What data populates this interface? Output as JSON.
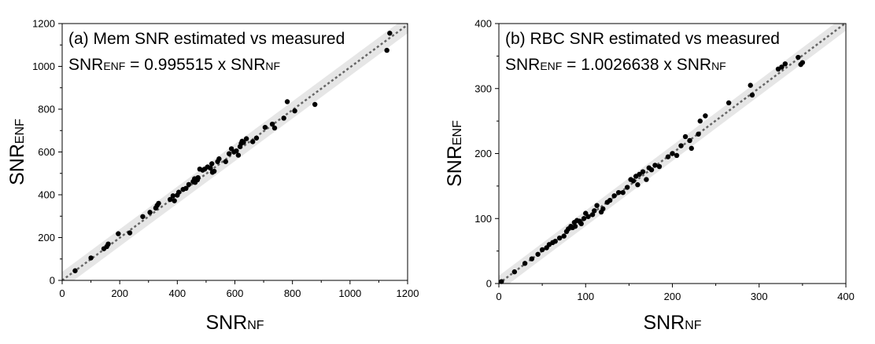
{
  "chart_data": [
    {
      "type": "scatter",
      "title": "(a)  Mem SNR estimated vs measured",
      "equation": {
        "lhs_main": "SNR",
        "lhs_sub": "ENF",
        "middle": " = 0.995515 x ",
        "rhs_main": "SNR",
        "rhs_sub": "NF"
      },
      "xlabel": {
        "main": "SNR",
        "sub": "NF"
      },
      "ylabel": {
        "main": "SNR",
        "sub": "ENF"
      },
      "xlim": [
        0,
        1200
      ],
      "ylim": [
        0,
        1200
      ],
      "xticks": [
        0,
        200,
        400,
        600,
        800,
        1000,
        1200
      ],
      "yticks": [
        0,
        200,
        400,
        600,
        800,
        1000,
        1200
      ],
      "fit_slope": 0.995515,
      "band_halfwidth": 40,
      "grid": false,
      "points": [
        [
          45,
          45
        ],
        [
          100,
          105
        ],
        [
          145,
          148
        ],
        [
          155,
          158
        ],
        [
          160,
          170
        ],
        [
          195,
          218
        ],
        [
          235,
          222
        ],
        [
          280,
          298
        ],
        [
          305,
          318
        ],
        [
          325,
          338
        ],
        [
          330,
          350
        ],
        [
          335,
          360
        ],
        [
          375,
          378
        ],
        [
          385,
          395
        ],
        [
          390,
          372
        ],
        [
          400,
          398
        ],
        [
          405,
          412
        ],
        [
          420,
          425
        ],
        [
          430,
          430
        ],
        [
          440,
          448
        ],
        [
          455,
          462
        ],
        [
          460,
          475
        ],
        [
          462,
          458
        ],
        [
          470,
          470
        ],
        [
          472,
          480
        ],
        [
          478,
          520
        ],
        [
          488,
          515
        ],
        [
          495,
          520
        ],
        [
          505,
          530
        ],
        [
          515,
          525
        ],
        [
          520,
          545
        ],
        [
          522,
          505
        ],
        [
          528,
          510
        ],
        [
          540,
          555
        ],
        [
          545,
          568
        ],
        [
          568,
          555
        ],
        [
          580,
          592
        ],
        [
          588,
          615
        ],
        [
          597,
          600
        ],
        [
          605,
          605
        ],
        [
          612,
          585
        ],
        [
          618,
          625
        ],
        [
          622,
          640
        ],
        [
          625,
          650
        ],
        [
          630,
          645
        ],
        [
          640,
          662
        ],
        [
          662,
          648
        ],
        [
          675,
          665
        ],
        [
          705,
          715
        ],
        [
          730,
          730
        ],
        [
          738,
          712
        ],
        [
          770,
          758
        ],
        [
          782,
          835
        ],
        [
          808,
          792
        ],
        [
          878,
          822
        ],
        [
          1128,
          1075
        ],
        [
          1138,
          1155
        ]
      ]
    },
    {
      "type": "scatter",
      "title": "(b)  RBC SNR estimated vs measured",
      "equation": {
        "lhs_main": "SNR",
        "lhs_sub": "ENF",
        "middle": " = 1.0026638 x ",
        "rhs_main": "SNR",
        "rhs_sub": "NF"
      },
      "xlabel": {
        "main": "SNR",
        "sub": "NF"
      },
      "ylabel": {
        "main": "SNR",
        "sub": "ENF"
      },
      "xlim": [
        0,
        400
      ],
      "ylim": [
        0,
        400
      ],
      "xticks": [
        0,
        100,
        200,
        300,
        400
      ],
      "yticks": [
        0,
        100,
        200,
        300,
        400
      ],
      "fit_slope": 1.0026638,
      "band_halfwidth": 12,
      "grid": false,
      "points": [
        [
          3,
          3
        ],
        [
          18,
          18
        ],
        [
          30,
          31
        ],
        [
          38,
          38
        ],
        [
          45,
          45
        ],
        [
          50,
          52
        ],
        [
          55,
          55
        ],
        [
          58,
          60
        ],
        [
          62,
          63
        ],
        [
          65,
          65
        ],
        [
          70,
          70
        ],
        [
          75,
          73
        ],
        [
          78,
          80
        ],
        [
          80,
          84
        ],
        [
          83,
          88
        ],
        [
          85,
          86
        ],
        [
          87,
          94
        ],
        [
          88,
          88
        ],
        [
          90,
          97
        ],
        [
          93,
          96
        ],
        [
          95,
          92
        ],
        [
          98,
          100
        ],
        [
          100,
          108
        ],
        [
          103,
          103
        ],
        [
          108,
          106
        ],
        [
          110,
          112
        ],
        [
          113,
          120
        ],
        [
          118,
          110
        ],
        [
          120,
          115
        ],
        [
          125,
          125
        ],
        [
          128,
          128
        ],
        [
          133,
          135
        ],
        [
          138,
          140
        ],
        [
          143,
          140
        ],
        [
          148,
          148
        ],
        [
          152,
          160
        ],
        [
          155,
          158
        ],
        [
          158,
          165
        ],
        [
          160,
          152
        ],
        [
          162,
          168
        ],
        [
          166,
          172
        ],
        [
          170,
          160
        ],
        [
          173,
          178
        ],
        [
          176,
          175
        ],
        [
          180,
          182
        ],
        [
          185,
          180
        ],
        [
          195,
          195
        ],
        [
          200,
          200
        ],
        [
          205,
          197
        ],
        [
          210,
          212
        ],
        [
          215,
          226
        ],
        [
          220,
          220
        ],
        [
          222,
          208
        ],
        [
          230,
          230
        ],
        [
          232,
          250
        ],
        [
          238,
          258
        ],
        [
          265,
          278
        ],
        [
          290,
          305
        ],
        [
          292,
          290
        ],
        [
          322,
          330
        ],
        [
          326,
          333
        ],
        [
          330,
          338
        ],
        [
          345,
          348
        ],
        [
          348,
          337
        ],
        [
          350,
          340
        ]
      ]
    }
  ]
}
